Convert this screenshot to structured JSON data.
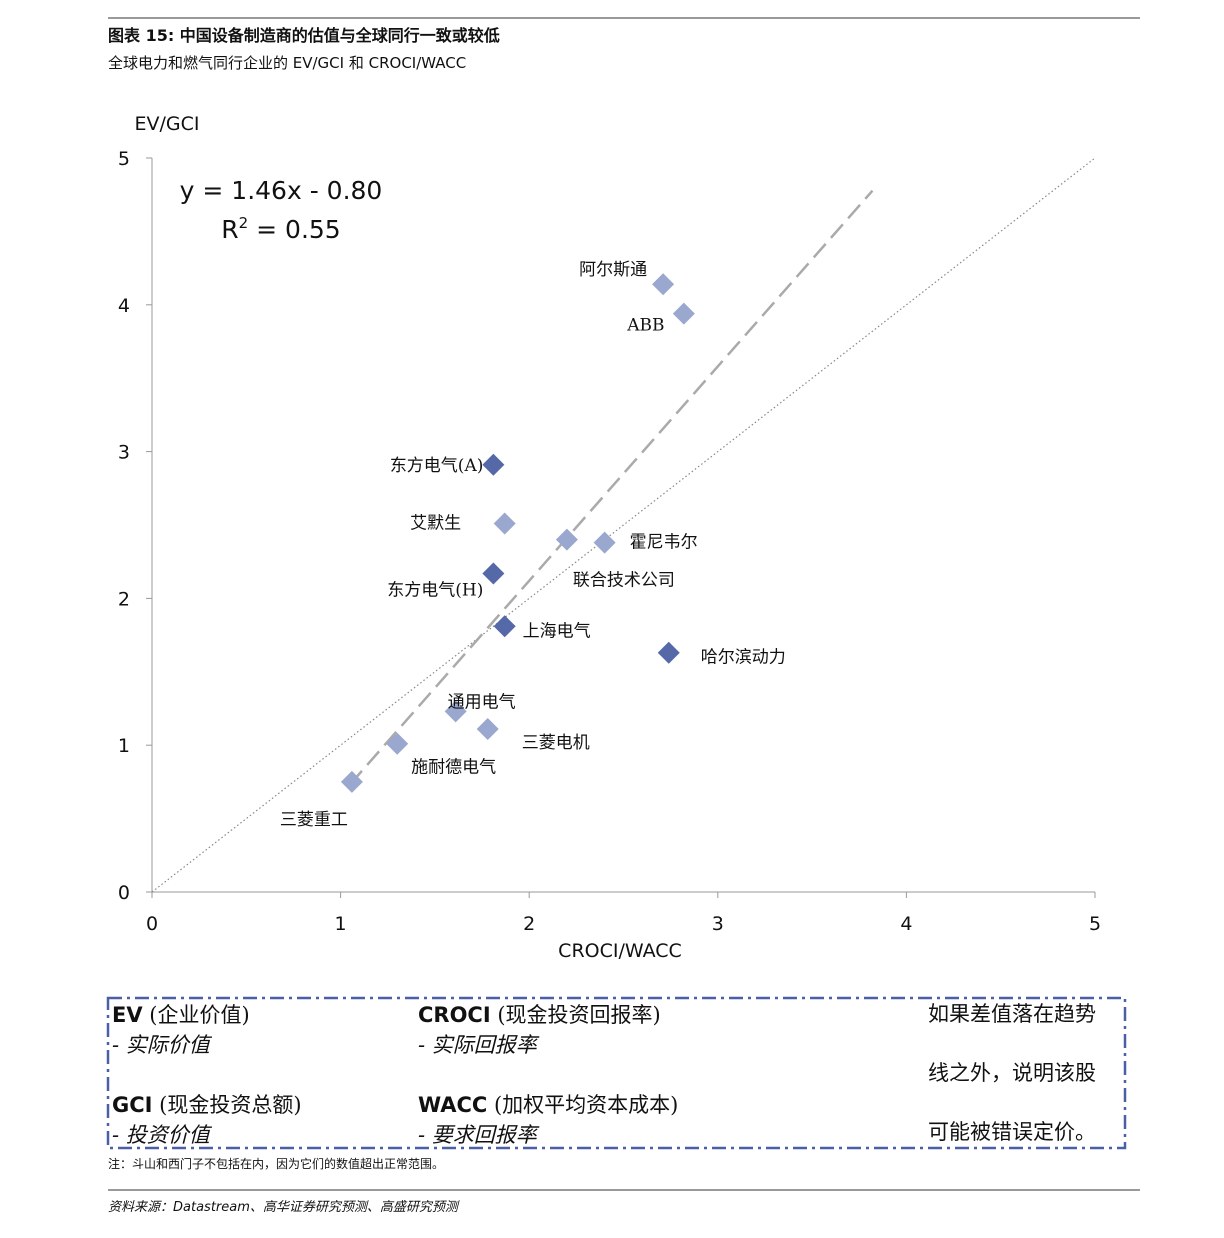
{
  "header": {
    "title": "图表 15:   中国设备制造商的估值与全球同行一致或较低",
    "subtitle": "全球电力和燃气同行企业的 EV/GCI 和 CROCI/WACC"
  },
  "chart_data": {
    "type": "scatter",
    "y_label": "EV/GCI",
    "x_label": "CROCI/WACC",
    "labels": [
      "阿尔斯通",
      "ABB",
      "东方电气(A)",
      "艾默生",
      "联合技术公司",
      "霍尼韦尔",
      "东方电气(H)",
      "上海电气",
      "哈尔滨动力",
      "通用电气",
      "三菱电机",
      "施耐德电气",
      "三菱重工"
    ],
    "x": [
      2.71,
      2.82,
      1.81,
      1.87,
      2.2,
      2.4,
      1.81,
      1.87,
      2.74,
      1.61,
      1.78,
      1.3,
      1.06
    ],
    "values": [
      4.14,
      3.94,
      2.91,
      2.51,
      2.4,
      2.38,
      2.17,
      1.81,
      1.63,
      1.23,
      1.11,
      1.01,
      0.75
    ],
    "colors": [
      "#9aa8cf",
      "#9aa8cf",
      "#5568a8",
      "#9aa8cf",
      "#9aa8cf",
      "#9aa8cf",
      "#5568a8",
      "#5568a8",
      "#5568a8",
      "#9aa8cf",
      "#9aa8cf",
      "#9aa8cf",
      "#9aa8cf"
    ],
    "xlim": [
      0,
      5
    ],
    "ylim": [
      0,
      5
    ],
    "xticks": [
      0,
      1,
      2,
      3,
      4,
      5
    ],
    "yticks": [
      0,
      1,
      2,
      3,
      4,
      5
    ],
    "trendline": {
      "equation": "y = 1.46x - 0.80",
      "r2_base": "R",
      "r2_sup": "2",
      "r2_rest": " = 0.55",
      "slope": 1.46,
      "intercept": -0.8,
      "x_start": 1.05,
      "x_end": 3.82
    }
  },
  "legend_box": {
    "items": [
      {
        "term": "EV",
        "meaning": " (企业价值)",
        "desc": "- 实际价值"
      },
      {
        "term": "CROCI",
        "meaning": " (现金投资回报率)",
        "desc": "- 实际回报率"
      },
      {
        "term": "GCI",
        "meaning": " (现金投资总额)",
        "desc": "- 投资价值"
      },
      {
        "term": "WACC",
        "meaning": " (加权平均资本成本)",
        "desc": "- 要求回报率"
      }
    ],
    "note_lines": [
      "如果差值落在趋势",
      "线之外，说明该股",
      "可能被错误定价。"
    ]
  },
  "footnote": "注：斗山和西门子不包括在内，因为它们的数值超出正常范围。",
  "source": "资料来源：Datastream、高华证券研究预测、高盛研究预测"
}
